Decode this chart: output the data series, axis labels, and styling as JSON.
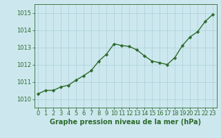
{
  "x": [
    0,
    1,
    2,
    3,
    4,
    5,
    6,
    7,
    8,
    9,
    10,
    11,
    12,
    13,
    14,
    15,
    16,
    17,
    18,
    19,
    20,
    21,
    22,
    23
  ],
  "y": [
    1010.3,
    1010.5,
    1010.5,
    1010.7,
    1010.8,
    1011.1,
    1011.35,
    1011.65,
    1012.2,
    1012.6,
    1013.2,
    1013.1,
    1013.05,
    1012.85,
    1012.5,
    1012.2,
    1012.1,
    1012.0,
    1012.4,
    1013.1,
    1013.6,
    1013.9,
    1014.5,
    1014.9
  ],
  "line_color": "#2d6a2d",
  "marker": "D",
  "marker_size": 2.2,
  "bg_color": "#cce8ee",
  "grid_color": "#aacdd6",
  "xlabel": "Graphe pression niveau de la mer (hPa)",
  "ylim": [
    1009.5,
    1015.5
  ],
  "xlim": [
    -0.5,
    23.5
  ],
  "yticks": [
    1010,
    1011,
    1012,
    1013,
    1014,
    1015
  ],
  "xticks": [
    0,
    1,
    2,
    3,
    4,
    5,
    6,
    7,
    8,
    9,
    10,
    11,
    12,
    13,
    14,
    15,
    16,
    17,
    18,
    19,
    20,
    21,
    22,
    23
  ],
  "tick_color": "#2d6a2d",
  "xlabel_fontsize": 7.0,
  "tick_fontsize": 6.0,
  "line_width": 1.0
}
